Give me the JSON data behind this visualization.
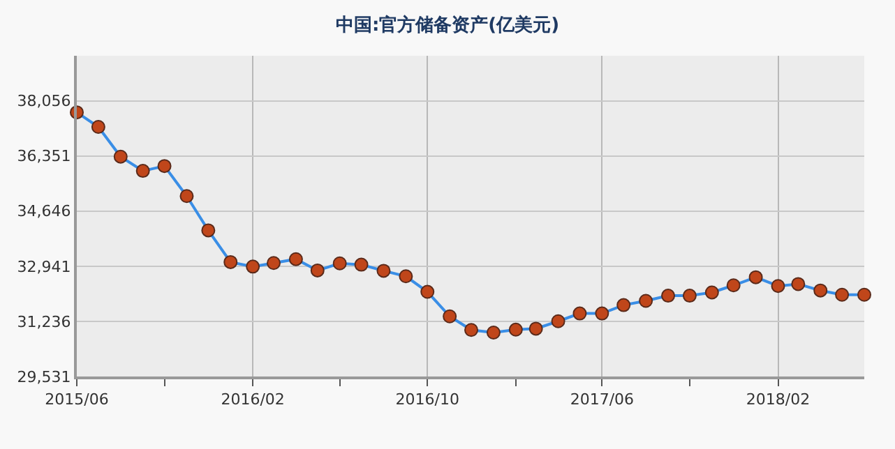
{
  "chart_data": {
    "type": "line",
    "title": "中国:官方储备资产(亿美元)",
    "x": [
      "2015-06",
      "2015-07",
      "2015-08",
      "2015-09",
      "2015-10",
      "2015-11",
      "2015-12",
      "2016-01",
      "2016-02",
      "2016-03",
      "2016-04",
      "2016-05",
      "2016-06",
      "2016-07",
      "2016-08",
      "2016-09",
      "2016-10",
      "2016-11",
      "2016-12",
      "2017-01",
      "2017-02",
      "2017-03",
      "2017-04",
      "2017-05",
      "2017-06",
      "2017-07",
      "2017-08",
      "2017-09",
      "2017-10",
      "2017-11",
      "2017-12",
      "2018-01",
      "2018-02",
      "2018-03",
      "2018-04",
      "2018-05",
      "2018-06"
    ],
    "series": [
      {
        "color": "#3a8ee6",
        "values": [
          37700,
          37250,
          36330,
          35890,
          36040,
          35110,
          34050,
          33070,
          32930,
          33040,
          33160,
          32810,
          33030,
          32990,
          32800,
          32630,
          32150,
          31390,
          30970,
          30890,
          30980,
          31010,
          31240,
          31480,
          31480,
          31740,
          31870,
          32030,
          32030,
          32130,
          32350,
          32600,
          32330,
          32390,
          32190,
          32060,
          32060
        ]
      }
    ],
    "xlim": [
      "2015-06",
      "2018-06"
    ],
    "xticks": [
      {
        "value": "2015-06",
        "label": "2015/06"
      },
      {
        "value": "2015-10",
        "label": null
      },
      {
        "value": "2016-02",
        "label": "2016/02"
      },
      {
        "value": "2016-06",
        "label": null
      },
      {
        "value": "2016-10",
        "label": "2016/10"
      },
      {
        "value": "2017-02",
        "label": null
      },
      {
        "value": "2017-06",
        "label": "2017/06"
      },
      {
        "value": "2017-10",
        "label": null
      },
      {
        "value": "2018-02",
        "label": "2018/02"
      }
    ],
    "ylim": [
      29531,
      39450
    ],
    "yticks": [
      {
        "value": 29531,
        "label": "29,531"
      },
      {
        "value": 31236,
        "label": "31,236"
      },
      {
        "value": 32941,
        "label": "32,941"
      },
      {
        "value": 34646,
        "label": "34,646"
      },
      {
        "value": 36351,
        "label": "36,351"
      },
      {
        "value": 38056,
        "label": "38,056"
      }
    ],
    "grid": true,
    "marker": "circle",
    "line_style": "solid"
  }
}
